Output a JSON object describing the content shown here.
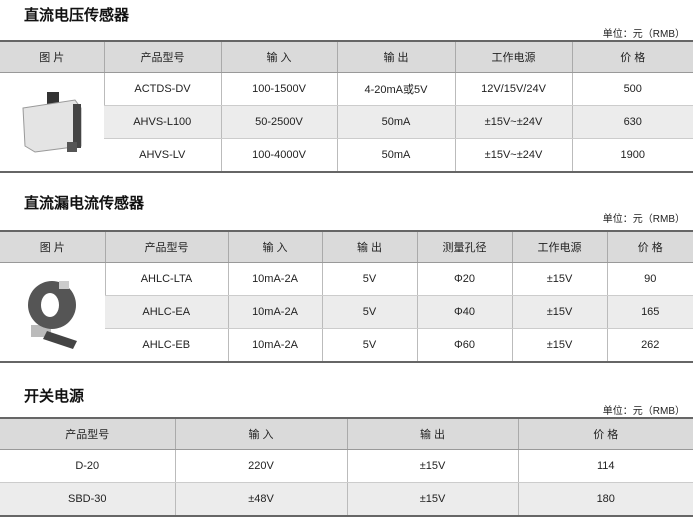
{
  "unit_label": "单位：元（RMB）",
  "sections": [
    {
      "title": "直流电压传感器",
      "headers": [
        "图  片",
        "产品型号",
        "输 入",
        "输 出",
        "工作电源",
        "价 格"
      ],
      "rows": [
        [
          "ACTDS-DV",
          "100-1500V",
          "4-20mA或5V",
          "12V/15V/24V",
          "500"
        ],
        [
          "AHVS-L100",
          "50-2500V",
          "50mA",
          "±15V~±24V",
          "630"
        ],
        [
          "AHVS-LV",
          "100-4000V",
          "50mA",
          "±15V~±24V",
          "1900"
        ]
      ]
    },
    {
      "title": "直流漏电流传感器",
      "headers": [
        "图  片",
        "产品型号",
        "输 入",
        "输 出",
        "测量孔径",
        "工作电源",
        "价 格"
      ],
      "rows": [
        [
          "AHLC-LTA",
          "10mA-2A",
          "5V",
          "Φ20",
          "±15V",
          "90"
        ],
        [
          "AHLC-EA",
          "10mA-2A",
          "5V",
          "Φ40",
          "±15V",
          "165"
        ],
        [
          "AHLC-EB",
          "10mA-2A",
          "5V",
          "Φ60",
          "±15V",
          "262"
        ]
      ]
    },
    {
      "title": "开关电源",
      "headers": [
        "产品型号",
        "输 入",
        "输 出",
        "价 格"
      ],
      "rows": [
        [
          "D-20",
          "220V",
          "±15V",
          "114"
        ],
        [
          "SBD-30",
          "±48V",
          "±15V",
          "180"
        ]
      ]
    }
  ]
}
